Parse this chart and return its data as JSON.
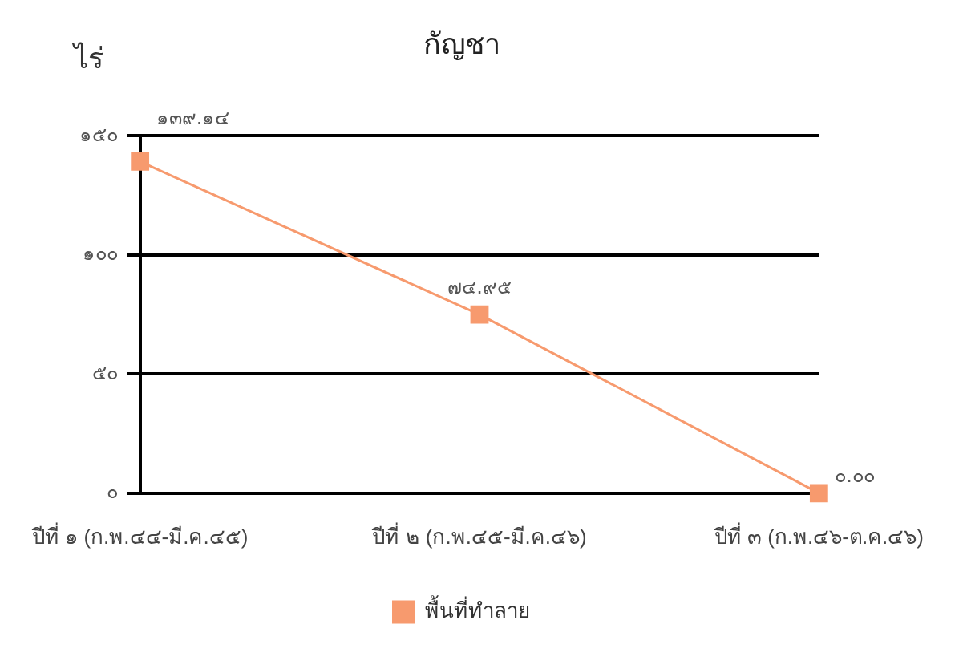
{
  "chart_data": {
    "type": "line",
    "title": "กัญชา",
    "ylabel": "ไร่",
    "categories": [
      "ปีที่ ๑ (ก.พ.๔๔-มี.ค.๔๕)",
      "ปีที่ ๒ (ก.พ.๔๕-มี.ค.๔๖)",
      "ปีที่ ๓ (ก.พ.๔๖-ต.ค.๔๖)"
    ],
    "series": [
      {
        "name": "พื้นที่ทำลาย",
        "color": "#f79a6e",
        "values": [
          139.14,
          74.95,
          0
        ],
        "value_labels": [
          "๑๓๙.๑๔",
          "๗๔.๙๕",
          "๐.๐๐"
        ]
      }
    ],
    "ylim": [
      0,
      150
    ],
    "yticks": [
      {
        "value": 0,
        "label": "๐"
      },
      {
        "value": 50,
        "label": "๕๐"
      },
      {
        "value": 100,
        "label": "๑๐๐"
      },
      {
        "value": 150,
        "label": "๑๕๐"
      }
    ],
    "grid": "y",
    "legend": "bottom",
    "marker": "square",
    "line_style": "solid"
  }
}
